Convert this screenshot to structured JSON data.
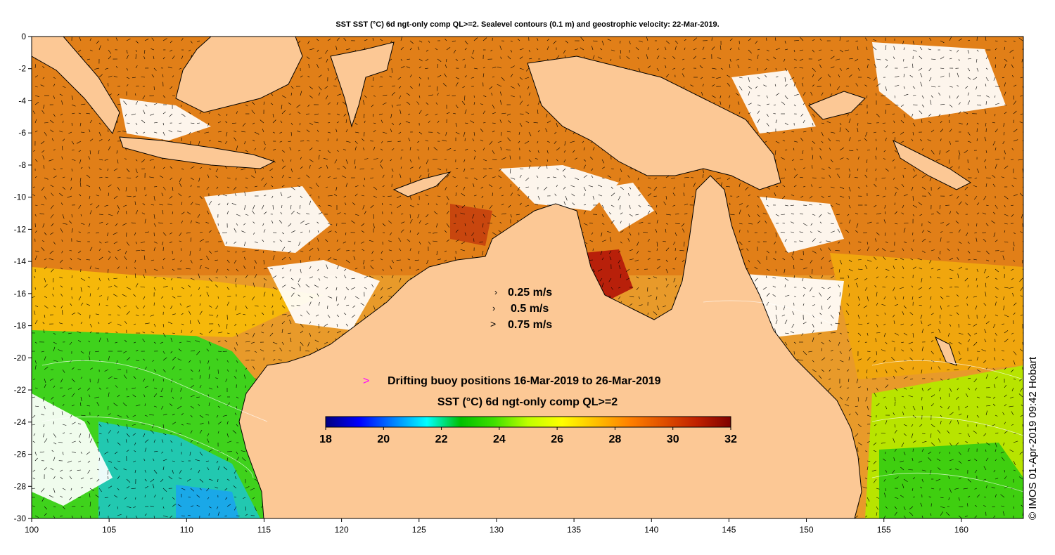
{
  "title": "SST SST (°C) 6d ngt-only comp QL>=2. Sealevel contours (0.1 m) and geostrophic velocity: 22-Mar-2019.",
  "credit": "© IMOS 01-Apr-2019 09:42 Hobart",
  "map": {
    "lon_range": [
      100,
      164
    ],
    "lat_range": [
      -30,
      0
    ],
    "x_ticks": [
      "100",
      "105",
      "110",
      "115",
      "120",
      "125",
      "130",
      "135",
      "140",
      "145",
      "150",
      "155",
      "160"
    ],
    "y_ticks": [
      "0",
      "-2",
      "-4",
      "-6",
      "-8",
      "-10",
      "-12",
      "-14",
      "-16",
      "-18",
      "-20",
      "-22",
      "-24",
      "-26",
      "-28",
      "-30"
    ],
    "land_color": "#fcc895",
    "coast_color": "#000000",
    "no_data_color": "#ffffff"
  },
  "velocity_legend": {
    "items": [
      {
        "label": "0.25 m/s",
        "marker": "›"
      },
      {
        "label": "0.5 m/s",
        "marker": "›"
      },
      {
        "label": "0.75 m/s",
        "marker": ">"
      }
    ]
  },
  "buoy_legend": {
    "marker": ">",
    "marker_color": "#ff00ff",
    "label": "Drifting buoy positions 16-Mar-2019 to 26-Mar-2019"
  },
  "colorbar": {
    "title": "SST (°C) 6d ngt-only comp QL>=2",
    "min": 18,
    "max": 32,
    "tick_labels": [
      "18",
      "20",
      "22",
      "24",
      "26",
      "28",
      "30",
      "32"
    ],
    "colors": [
      "#00007f",
      "#0000ff",
      "#0080ff",
      "#00ffff",
      "#00c000",
      "#40e000",
      "#c0ff00",
      "#ffff00",
      "#ffc000",
      "#ff8000",
      "#e05000",
      "#c02000",
      "#7f0000"
    ]
  }
}
